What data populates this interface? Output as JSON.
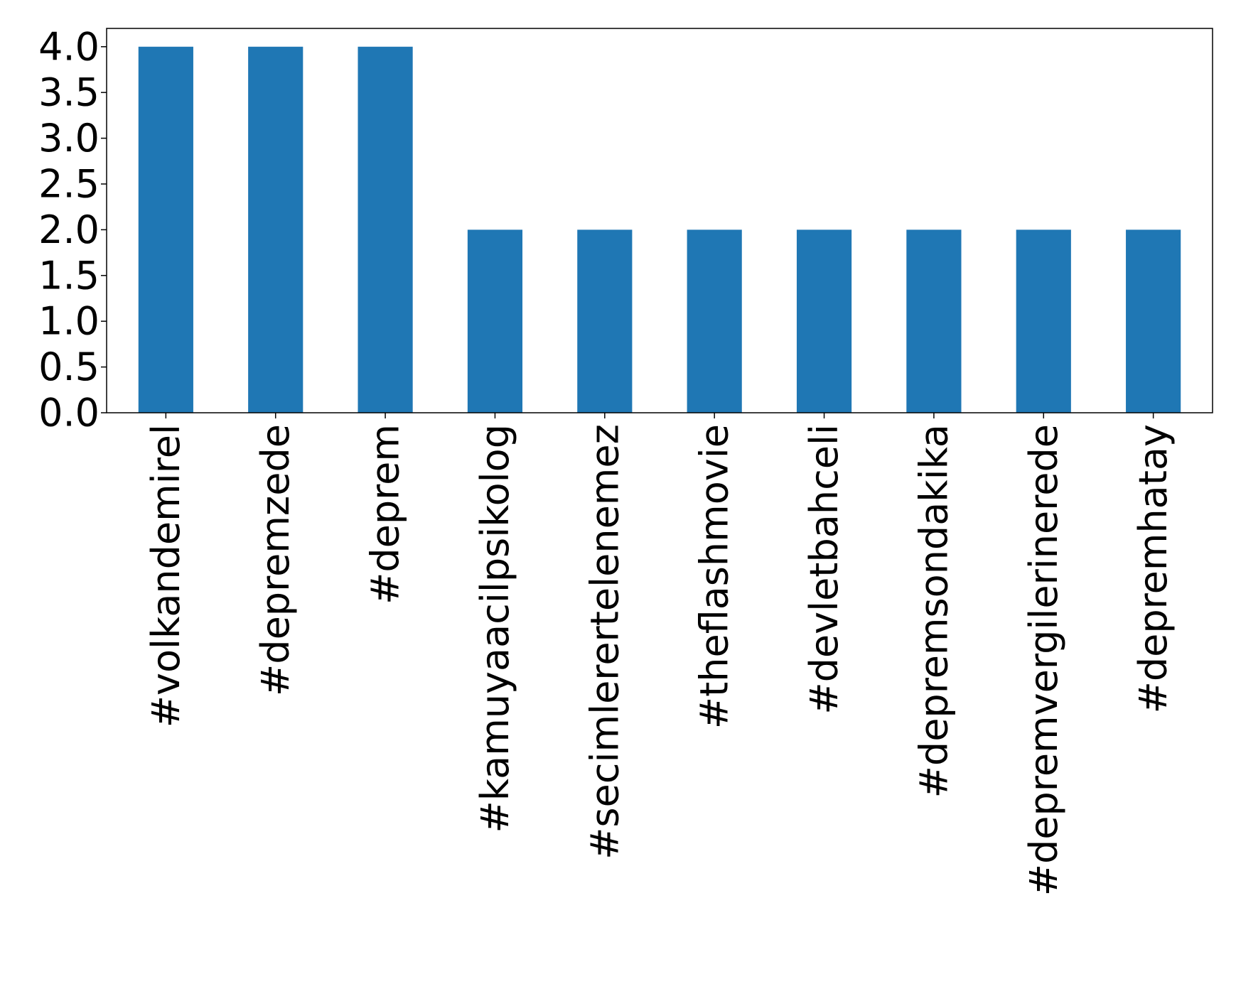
{
  "chart_data": {
    "type": "bar",
    "title": "",
    "xlabel": "",
    "ylabel": "",
    "categories": [
      "#volkandemirel",
      "#depremzede",
      "#deprem",
      "#kamuyaacilpsikolog",
      "#secimlerertelenemez",
      "#theflashmovie",
      "#devletbahceli",
      "#depremsondakika",
      "#depremvergilerinerede",
      "#depremhatay"
    ],
    "values": [
      4,
      4,
      4,
      2,
      2,
      2,
      2,
      2,
      2,
      2
    ],
    "ylim": [
      0,
      4.2
    ],
    "yticks": [
      0.0,
      0.5,
      1.0,
      1.5,
      2.0,
      2.5,
      3.0,
      3.5,
      4.0
    ],
    "ytick_labels": [
      "0.0",
      "0.5",
      "1.0",
      "1.5",
      "2.0",
      "2.5",
      "3.0",
      "3.5",
      "4.0"
    ],
    "grid": false,
    "legend": "none",
    "bar_color": "#1f77b4"
  }
}
